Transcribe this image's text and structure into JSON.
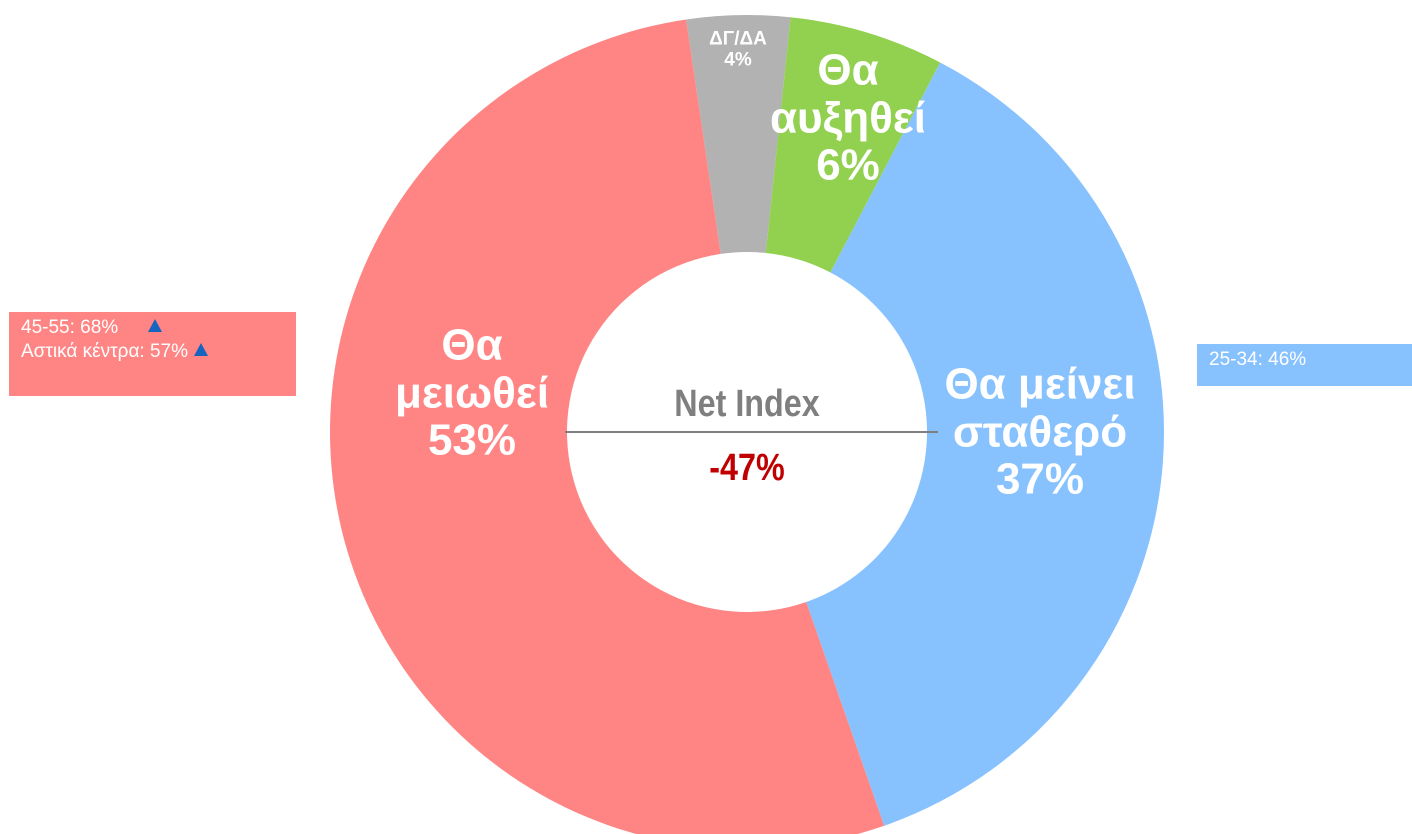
{
  "chart_data": {
    "type": "pie",
    "categories": [
      "ΔΓ/ΔΑ",
      "Θα αυξηθεί",
      "Θα μείνει σταθερό",
      "Θα μειωθεί"
    ],
    "values": [
      4,
      6,
      37,
      53
    ],
    "value_labels": [
      "4%",
      "6%",
      "37%",
      "53%"
    ],
    "colors": [
      "#b2b2b2",
      "#92d050",
      "#87c2fe",
      "#ff8585"
    ],
    "donut": true,
    "center_title": "Net Index",
    "center_value": -47,
    "center_value_label": "-47%",
    "annotations": [
      {
        "side": "left",
        "lines": [
          "45-55: 68%",
          "Αστικά κέντρα: 57%"
        ]
      },
      {
        "side": "right",
        "lines": [
          "25-34: 46%"
        ]
      }
    ]
  }
}
